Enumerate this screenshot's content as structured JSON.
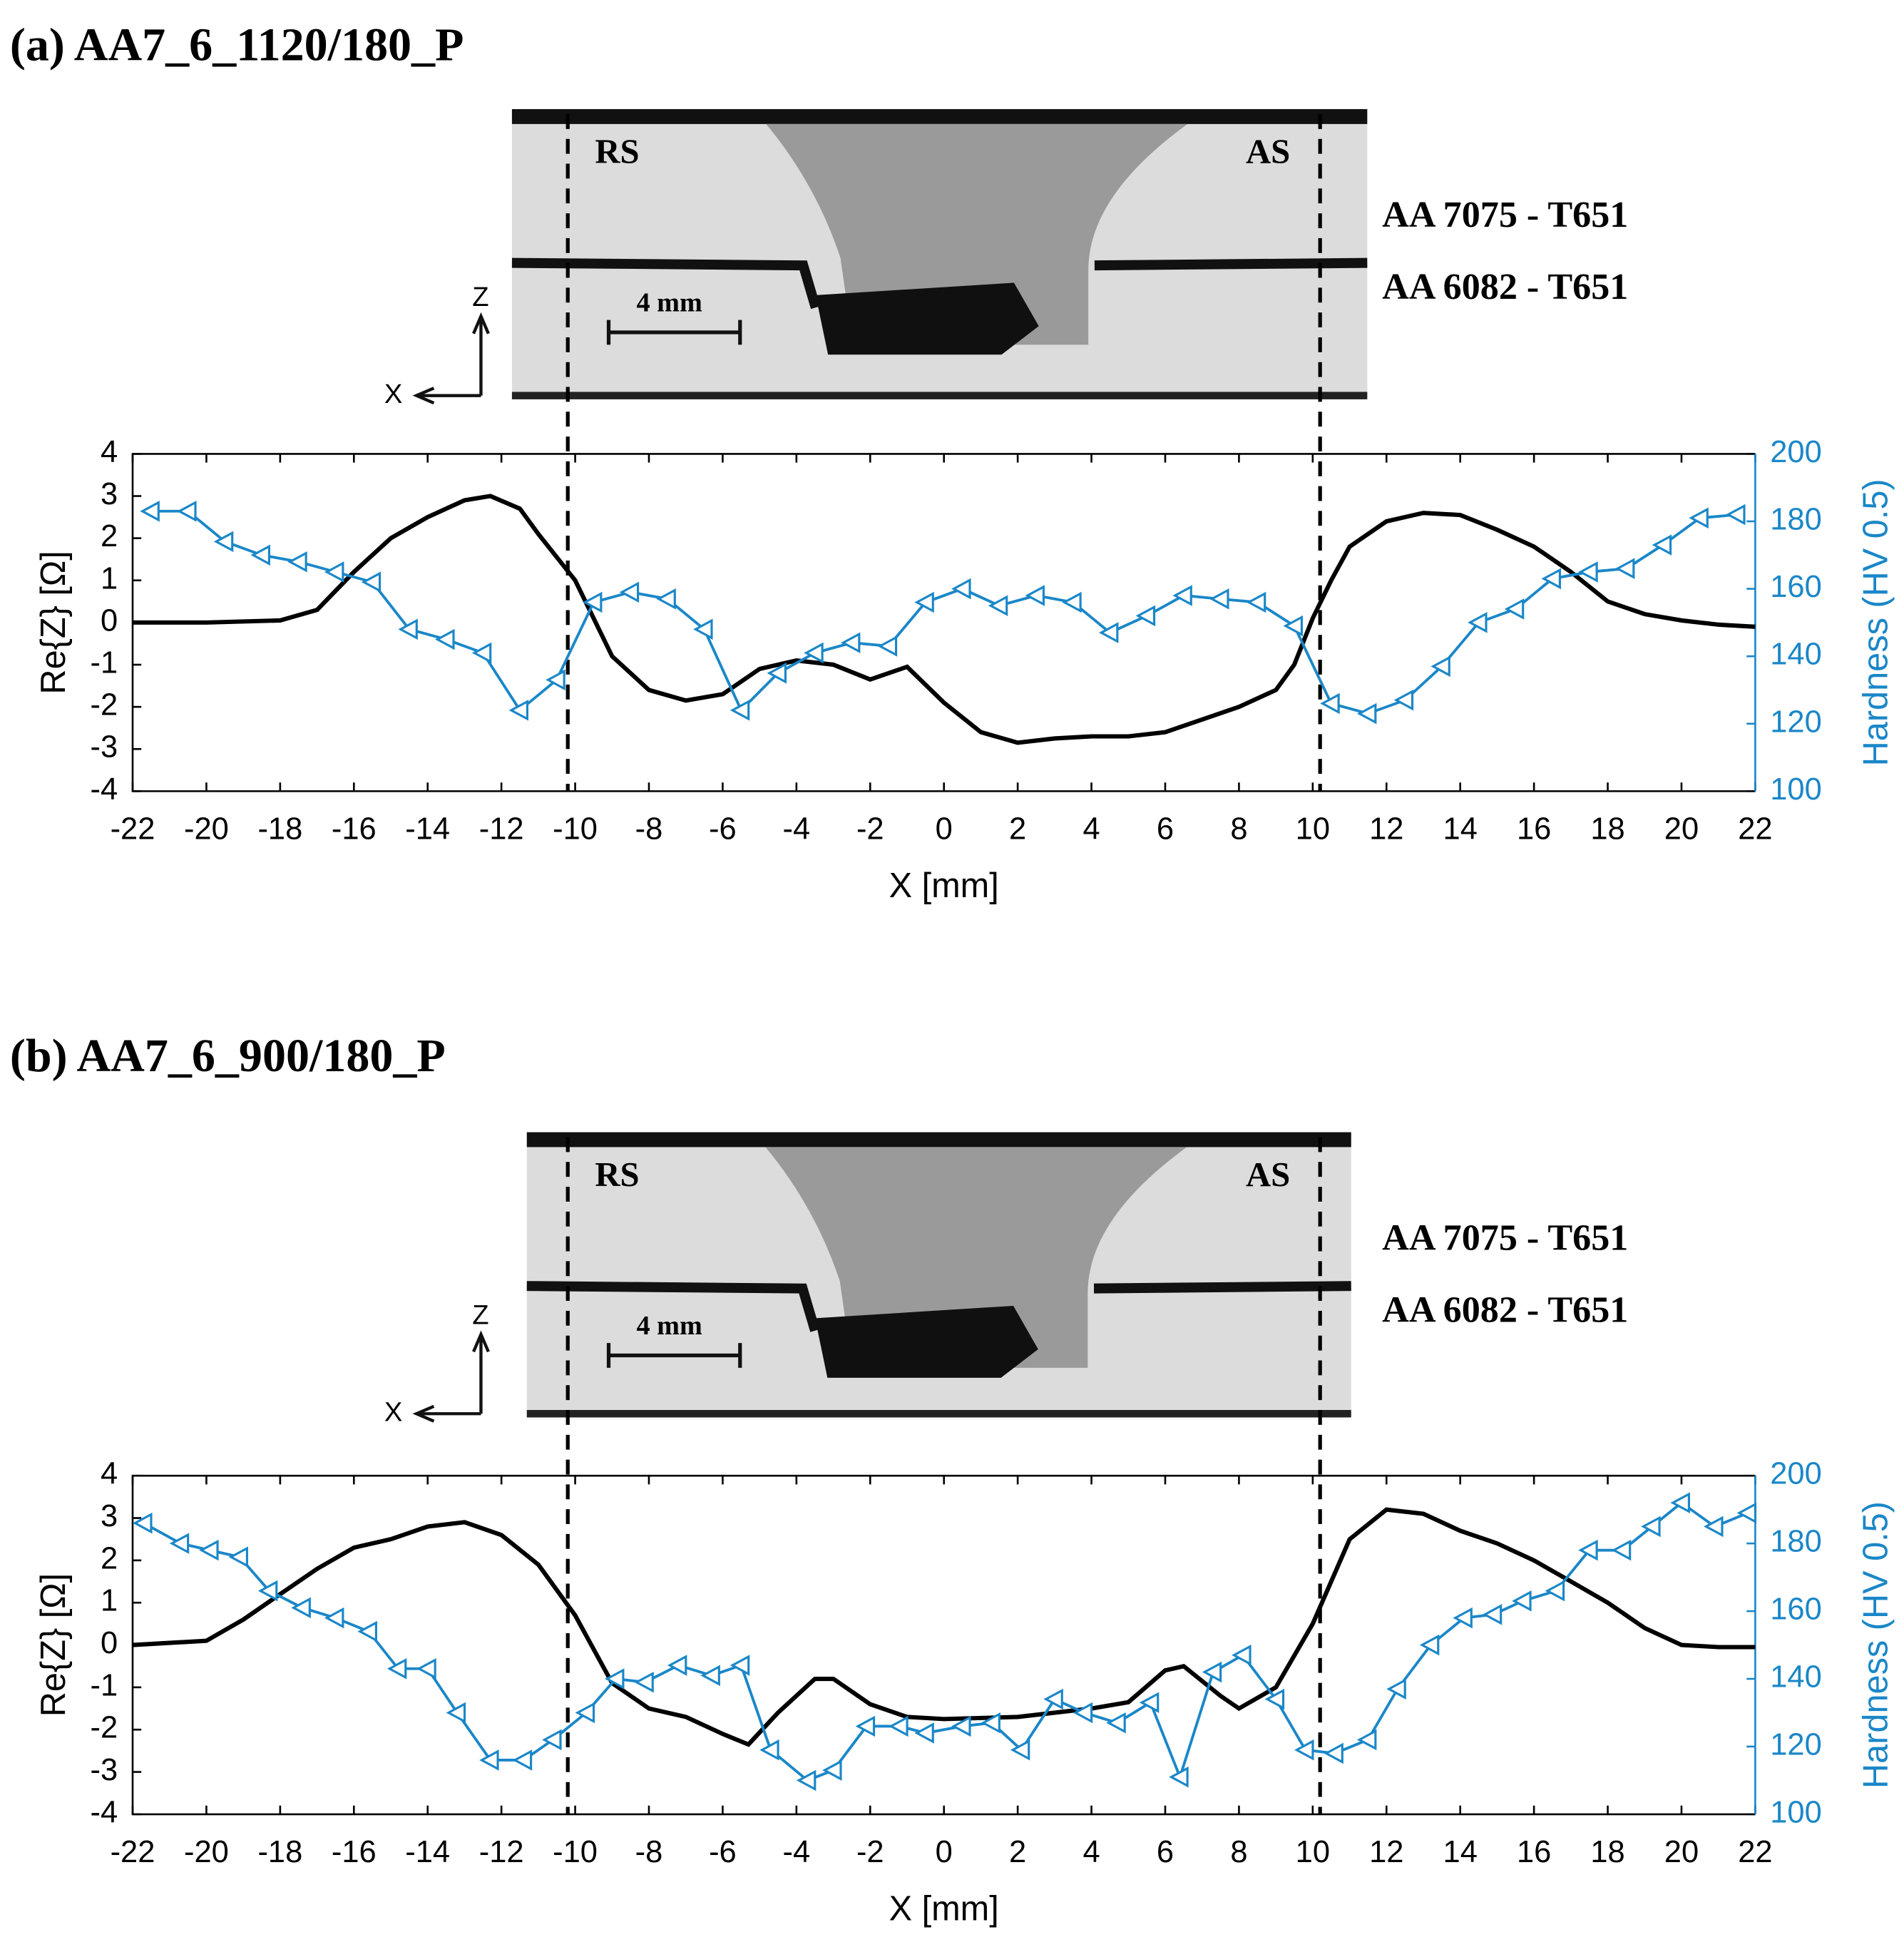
{
  "chart_data": [
    {
      "type": "line",
      "title": "(a) AA7_6_1120/180_P",
      "xlabel": "X [mm]",
      "ylabel": "Re{Z} [Ω]",
      "y2label": "Hardness (HV 0.5)",
      "xlim": [
        -22,
        22
      ],
      "xticks": [
        -22,
        -20,
        -18,
        -16,
        -14,
        -12,
        -10,
        -8,
        -6,
        -4,
        -2,
        0,
        2,
        4,
        6,
        8,
        10,
        12,
        14,
        16,
        18,
        20,
        22
      ],
      "ylim": [
        -4,
        4
      ],
      "yticks": [
        -4,
        -3,
        -2,
        -1,
        0,
        1,
        2,
        3,
        4
      ],
      "y2lim": [
        100,
        200
      ],
      "y2ticks": [
        100,
        120,
        140,
        160,
        180,
        200
      ],
      "vlines": [
        -10.2,
        10.2
      ],
      "annotations": [
        "RS",
        "AS",
        "AA 7075 - T651",
        "AA 6082 - T651",
        "4 mm",
        "Z",
        "X"
      ],
      "series": [
        {
          "color": "#000000",
          "marker": false,
          "x": [
            -22,
            -20,
            -18,
            -17,
            -16,
            -15,
            -14,
            -13,
            -12.3,
            -11.5,
            -11,
            -10,
            -9,
            -8,
            -7,
            -6,
            -5,
            -4,
            -3,
            -2,
            -1,
            0,
            1,
            2,
            3,
            4,
            5,
            6,
            7,
            8,
            9,
            9.5,
            10,
            10.5,
            11,
            12,
            13,
            14,
            15,
            16,
            17,
            18,
            19,
            20,
            21,
            22
          ],
          "values": [
            0,
            0,
            0.05,
            0.3,
            1.2,
            2.0,
            2.5,
            2.9,
            3.0,
            2.7,
            2.1,
            1.0,
            -0.8,
            -1.6,
            -1.85,
            -1.7,
            -1.1,
            -0.9,
            -1.0,
            -1.35,
            -1.05,
            -1.9,
            -2.6,
            -2.85,
            -2.75,
            -2.7,
            -2.7,
            -2.6,
            -2.3,
            -2.0,
            -1.6,
            -1.0,
            0.1,
            1.0,
            1.8,
            2.4,
            2.6,
            2.55,
            2.2,
            1.8,
            1.2,
            0.5,
            0.2,
            0.05,
            -0.05,
            -0.1
          ]
        },
        {
          "color": "#1a87c8",
          "marker": true,
          "axis": "y2",
          "x": [
            -21.5,
            -20.5,
            -19.5,
            -18.5,
            -17.5,
            -16.5,
            -15.5,
            -14.5,
            -13.5,
            -12.5,
            -11.5,
            -10.5,
            -9.5,
            -8.5,
            -7.5,
            -6.5,
            -5.5,
            -4.5,
            -3.5,
            -2.5,
            -1.5,
            -0.5,
            0.5,
            1.5,
            2.5,
            3.5,
            4.5,
            5.5,
            6.5,
            7.5,
            8.5,
            9.5,
            10.5,
            11.5,
            12.5,
            13.5,
            14.5,
            15.5,
            16.5,
            17.5,
            18.5,
            19.5,
            20.5,
            21.5
          ],
          "values": [
            183,
            183,
            174,
            170,
            168,
            165,
            162,
            148,
            145,
            141,
            124,
            133,
            156,
            159,
            157,
            148,
            124,
            135,
            141,
            144,
            143,
            156,
            160,
            155,
            158,
            156,
            147,
            152,
            158,
            157,
            156,
            149,
            126,
            123,
            127,
            137,
            150,
            154,
            163,
            165,
            166,
            173,
            181,
            182
          ]
        }
      ]
    },
    {
      "type": "line",
      "title": "(b) AA7_6_900/180_P",
      "xlabel": "X [mm]",
      "ylabel": "Re{Z} [Ω]",
      "y2label": "Hardness (HV 0.5)",
      "xlim": [
        -22,
        22
      ],
      "xticks": [
        -22,
        -20,
        -18,
        -16,
        -14,
        -12,
        -10,
        -8,
        -6,
        -4,
        -2,
        0,
        2,
        4,
        6,
        8,
        10,
        12,
        14,
        16,
        18,
        20,
        22
      ],
      "ylim": [
        -4,
        4
      ],
      "yticks": [
        -4,
        -3,
        -2,
        -1,
        0,
        1,
        2,
        3,
        4
      ],
      "y2lim": [
        100,
        200
      ],
      "y2ticks": [
        100,
        120,
        140,
        160,
        180,
        200
      ],
      "vlines": [
        -10.2,
        10.2
      ],
      "annotations": [
        "RS",
        "AS",
        "AA 7075 - T651",
        "AA 6082 - T651",
        "4 mm",
        "Z",
        "X"
      ],
      "series": [
        {
          "color": "#000000",
          "marker": false,
          "x": [
            -22,
            -20,
            -19,
            -18,
            -17,
            -16,
            -15,
            -14,
            -13,
            -12,
            -11,
            -10,
            -9,
            -8,
            -7,
            -6,
            -5.3,
            -4.5,
            -3.5,
            -3,
            -2,
            -1,
            0,
            2,
            4,
            5,
            6,
            6.5,
            7.5,
            8,
            9,
            10,
            11,
            12,
            13,
            14,
            15,
            16,
            17,
            18,
            19,
            20,
            21,
            22
          ],
          "values": [
            0,
            0.1,
            0.6,
            1.2,
            1.8,
            2.3,
            2.5,
            2.8,
            2.9,
            2.6,
            1.9,
            0.7,
            -0.9,
            -1.5,
            -1.7,
            -2.1,
            -2.35,
            -1.6,
            -0.8,
            -0.8,
            -1.4,
            -1.7,
            -1.75,
            -1.7,
            -1.5,
            -1.35,
            -0.6,
            -0.5,
            -1.2,
            -1.5,
            -1.0,
            0.5,
            2.5,
            3.2,
            3.1,
            2.7,
            2.4,
            2.0,
            1.5,
            1.0,
            0.4,
            0.0,
            -0.05,
            -0.05
          ]
        },
        {
          "color": "#1a87c8",
          "marker": true,
          "axis": "y2",
          "x": [
            -21.7,
            -20.7,
            -19.9,
            -19.1,
            -18.3,
            -17.4,
            -16.5,
            -15.6,
            -14.8,
            -14.0,
            -13.2,
            -12.3,
            -11.4,
            -10.6,
            -9.7,
            -8.9,
            -8.1,
            -7.2,
            -6.3,
            -5.5,
            -4.7,
            -3.7,
            -3.0,
            -2.1,
            -1.2,
            -0.5,
            0.5,
            1.3,
            2.1,
            3.0,
            3.8,
            4.7,
            5.6,
            6.4,
            7.3,
            8.1,
            9.0,
            9.8,
            10.6,
            11.5,
            12.3,
            13.2,
            14.1,
            14.9,
            15.7,
            16.6,
            17.5,
            18.4,
            19.2,
            20.0,
            20.9,
            21.8
          ],
          "values": [
            186,
            180,
            178,
            176,
            166,
            161,
            158,
            154,
            143,
            143,
            130,
            116,
            116,
            122,
            130,
            140,
            139,
            144,
            141,
            144,
            119,
            110,
            113,
            126,
            126,
            124,
            126,
            127,
            119,
            134,
            130,
            127,
            133,
            111,
            142,
            147,
            134,
            119,
            118,
            122,
            137,
            150,
            158,
            159,
            163,
            166,
            178,
            178,
            185,
            192,
            185,
            189
          ]
        }
      ]
    }
  ]
}
